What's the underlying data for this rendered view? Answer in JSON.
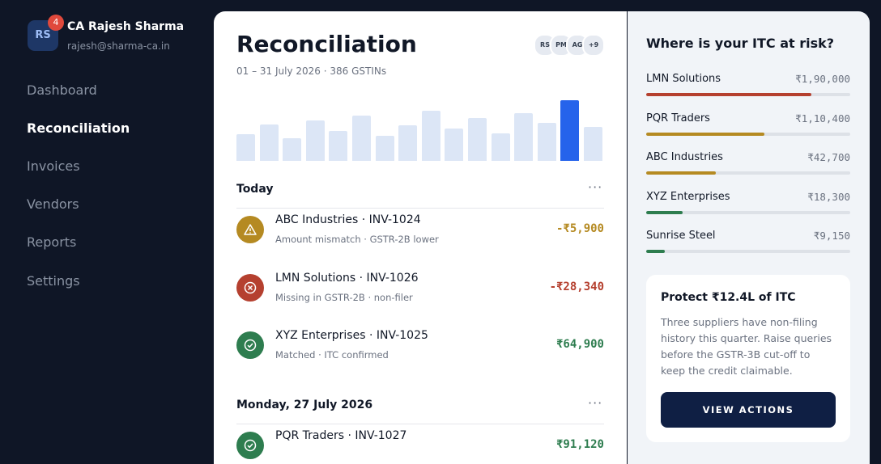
{
  "sidebar": {
    "user": {
      "initials": "RS",
      "badge": "4",
      "name": "CA Rajesh Sharma",
      "email": "rajesh@sharma-ca.in"
    },
    "nav": [
      "Dashboard",
      "Reconciliation",
      "Invoices",
      "Vendors",
      "Reports",
      "Settings"
    ],
    "active": 1
  },
  "main": {
    "title": "Reconciliation",
    "subtitle": "01 – 31 July 2026 · 386 GSTINs",
    "avatars": [
      "RS",
      "PM",
      "AG",
      "+9"
    ],
    "chart": {
      "values": [
        33,
        45,
        28,
        50,
        37,
        56,
        31,
        44,
        62,
        40,
        53,
        34,
        59,
        47,
        75,
        42
      ],
      "colors": [
        "#dce6f6",
        "#dce6f6",
        "#dce6f6",
        "#dce6f6",
        "#dce6f6",
        "#dce6f6",
        "#dce6f6",
        "#dce6f6",
        "#dce6f6",
        "#dce6f6",
        "#dce6f6",
        "#dce6f6",
        "#dce6f6",
        "#dce6f6",
        "#2563eb",
        "#dce6f6"
      ]
    },
    "groups": [
      {
        "label": "Today",
        "items": [
          {
            "title": "ABC Industries · INV-1024",
            "detail": "Amount mismatch · GSTR-2B lower",
            "amount": "-₹5,900",
            "color": "#b58a22",
            "icon": "warning"
          },
          {
            "title": "LMN Solutions · INV-1026",
            "detail": "Missing in GSTR-2B · non-filer",
            "amount": "-₹28,340",
            "color": "#b5402f",
            "icon": "error"
          },
          {
            "title": "XYZ Enterprises · INV-1025",
            "detail": "Matched · ITC confirmed",
            "amount": "₹64,900",
            "color": "#2e7d4f",
            "icon": "check"
          }
        ]
      },
      {
        "label": "Monday, 27 July 2026",
        "items": [
          {
            "title": "PQR Traders · INV-1027",
            "amount": "₹91,120",
            "color": "#2e7d4f",
            "icon": "check"
          }
        ]
      }
    ]
  },
  "risk": {
    "title": "Where is your ITC at risk?",
    "items": [
      {
        "name": "LMN Solutions",
        "amount": "₹1,90,000",
        "progress": 81,
        "color": "#b5402f"
      },
      {
        "name": "PQR Traders",
        "amount": "₹1,10,400",
        "progress": 58,
        "color": "#b58a22"
      },
      {
        "name": "ABC Industries",
        "amount": "₹42,700",
        "progress": 34,
        "color": "#b58a22"
      },
      {
        "name": "XYZ Enterprises",
        "amount": "₹18,300",
        "progress": 18,
        "color": "#2e7d4f"
      },
      {
        "name": "Sunrise Steel",
        "amount": "₹9,150",
        "progress": 9,
        "color": "#2e7d4f"
      }
    ],
    "card": {
      "title": "Protect ₹12.4L of ITC",
      "text": "Three suppliers have non-filing history this quarter. Raise queries before the GSTR-3B cut-off to keep the credit claimable.",
      "button": "VIEW ACTIONS"
    }
  }
}
